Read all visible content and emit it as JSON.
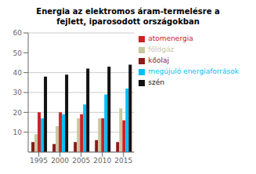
{
  "chart_data": {
    "type": "bar",
    "title": "Energia az elektromos áram-termelésre a\nfejlett, iparosodott országokban",
    "categories": [
      1995,
      2000,
      2005,
      2010,
      2015
    ],
    "series": [
      {
        "name": "kőolaj",
        "color": "#8B1A1A",
        "values": [
          5,
          4,
          5,
          6,
          5
        ]
      },
      {
        "name": "földgáz",
        "color": "#C8C8A0",
        "values": [
          9,
          13,
          17,
          17,
          22
        ]
      },
      {
        "name": "atomenergia",
        "color": "#CC2222",
        "values": [
          20,
          20,
          19,
          17,
          16
        ]
      },
      {
        "name": "megújuló energiaforrások",
        "color": "#00BFFF",
        "values": [
          17,
          19,
          24,
          29,
          32
        ]
      },
      {
        "name": "szén",
        "color": "#111111",
        "values": [
          38,
          39,
          42,
          43,
          44
        ]
      }
    ],
    "ylim": [
      0,
      60
    ],
    "yticks": [
      10,
      20,
      30,
      40,
      50,
      60
    ],
    "grid": true,
    "legend": "upper right"
  }
}
